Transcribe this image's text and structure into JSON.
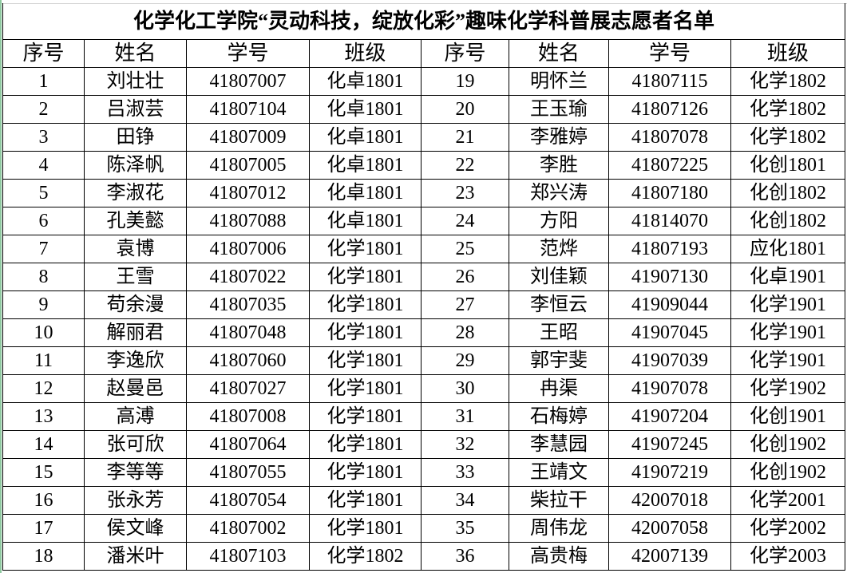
{
  "title": "化学化工学院“灵动科技，绽放化彩”趣味化学科普展志愿者名单",
  "headers": [
    "序号",
    "姓名",
    "学号",
    "班级",
    "序号",
    "姓名",
    "学号",
    "班级"
  ],
  "rows": [
    [
      "1",
      "刘壮壮",
      "41807007",
      "化卓1801",
      "19",
      "明怀兰",
      "41807115",
      "化学1802"
    ],
    [
      "2",
      "吕淑芸",
      "41807104",
      "化卓1801",
      "20",
      "王玉瑜",
      "41807126",
      "化学1802"
    ],
    [
      "3",
      "田铮",
      "41807009",
      "化卓1801",
      "21",
      "李雅婷",
      "41807078",
      "化学1802"
    ],
    [
      "4",
      "陈泽帆",
      "41807005",
      "化卓1801",
      "22",
      "李胜",
      "41807225",
      "化创1801"
    ],
    [
      "5",
      "李淑花",
      "41807012",
      "化卓1801",
      "23",
      "郑兴涛",
      "41807180",
      "化创1802"
    ],
    [
      "6",
      "孔美懿",
      "41807088",
      "化卓1801",
      "24",
      "方阳",
      "41814070",
      "化创1802"
    ],
    [
      "7",
      "袁博",
      "41807006",
      "化学1801",
      "25",
      "范烨",
      "41807193",
      "应化1801"
    ],
    [
      "8",
      "王雪",
      "41807022",
      "化学1801",
      "26",
      "刘佳颖",
      "41907130",
      "化卓1901"
    ],
    [
      "9",
      "苟余漫",
      "41807035",
      "化学1801",
      "27",
      "李恒云",
      "41909044",
      "化学1901"
    ],
    [
      "10",
      "解丽君",
      "41807048",
      "化学1801",
      "28",
      "王昭",
      "41907045",
      "化学1901"
    ],
    [
      "11",
      "李逸欣",
      "41807060",
      "化学1801",
      "29",
      "郭宇斐",
      "41907039",
      "化学1901"
    ],
    [
      "12",
      "赵曼邑",
      "41807027",
      "化学1801",
      "30",
      "冉渠",
      "41907078",
      "化学1902"
    ],
    [
      "13",
      "高溥",
      "41807008",
      "化学1801",
      "31",
      "石梅婷",
      "41907204",
      "化创1901"
    ],
    [
      "14",
      "张可欣",
      "41807064",
      "化学1801",
      "32",
      "李慧园",
      "41907245",
      "化创1902"
    ],
    [
      "15",
      "李等等",
      "41807055",
      "化学1801",
      "33",
      "王靖文",
      "41907219",
      "化创1902"
    ],
    [
      "16",
      "张永芳",
      "41807054",
      "化学1801",
      "34",
      "柴拉干",
      "42007018",
      "化学2001"
    ],
    [
      "17",
      "侯文峰",
      "41807002",
      "化学1801",
      "35",
      "周伟龙",
      "42007058",
      "化学2002"
    ],
    [
      "18",
      "潘米叶",
      "41807103",
      "化学1802",
      "36",
      "高贵梅",
      "42007139",
      "化学2003"
    ]
  ]
}
